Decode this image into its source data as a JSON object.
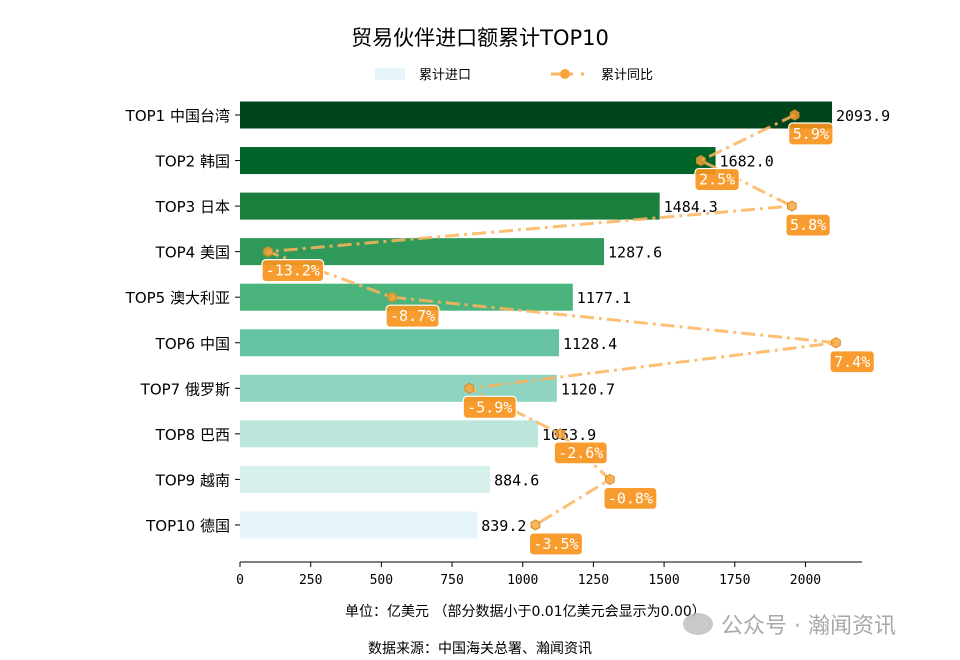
{
  "chart_data": {
    "type": "bar",
    "orientation": "horizontal",
    "title": "贸易伙伴进口额累计TOP10",
    "categories": [
      "TOP1 中国台湾",
      "TOP2 韩国",
      "TOP3 日本",
      "TOP4 美国",
      "TOP5 澳大利亚",
      "TOP6 中国",
      "TOP7 俄罗斯",
      "TOP8 巴西",
      "TOP9 越南",
      "TOP10 德国"
    ],
    "series": [
      {
        "name": "累计进口",
        "type": "bar",
        "values": [
          2093.9,
          1682.0,
          1484.3,
          1287.6,
          1177.1,
          1128.4,
          1120.7,
          1053.9,
          884.6,
          839.2
        ],
        "value_labels": [
          "2093.9",
          "1682.0",
          "1484.3",
          "1287.6",
          "1177.1",
          "1128.4",
          "1120.7",
          "1053.9",
          "884.6",
          "839.2"
        ]
      },
      {
        "name": "累计同比",
        "type": "line",
        "values": [
          5.9,
          2.5,
          5.8,
          -13.2,
          -8.7,
          7.4,
          -5.9,
          -2.6,
          -0.8,
          -3.5
        ],
        "value_labels": [
          "5.9%",
          "2.5%",
          "5.8%",
          "-13.2%",
          "-8.7%",
          "7.4%",
          "-5.9%",
          "-2.6%",
          "-0.8%",
          "-3.5%"
        ]
      }
    ],
    "xlim": [
      0,
      2200
    ],
    "xticks": [
      "0",
      "250",
      "500",
      "750",
      "1000",
      "1250",
      "1500",
      "1750",
      "2000"
    ],
    "xlabel": "单位：亿美元  （部分数据小于0.01亿美元会显示为0.00）",
    "legend": "top-center",
    "grid": false,
    "colors": {
      "bars": [
        "#00441b",
        "#006428",
        "#1b7e3c",
        "#2e9958",
        "#4bb47c",
        "#66c2a4",
        "#8fd4c1",
        "#bce6dc",
        "#d6f0ec",
        "#e5f5f9"
      ],
      "line": "#fdb45c",
      "label_box": "#f7941d"
    }
  },
  "source": "数据来源：中国海关总署、瀚闻资讯",
  "watermark": "公众号 · 瀚闻资讯"
}
